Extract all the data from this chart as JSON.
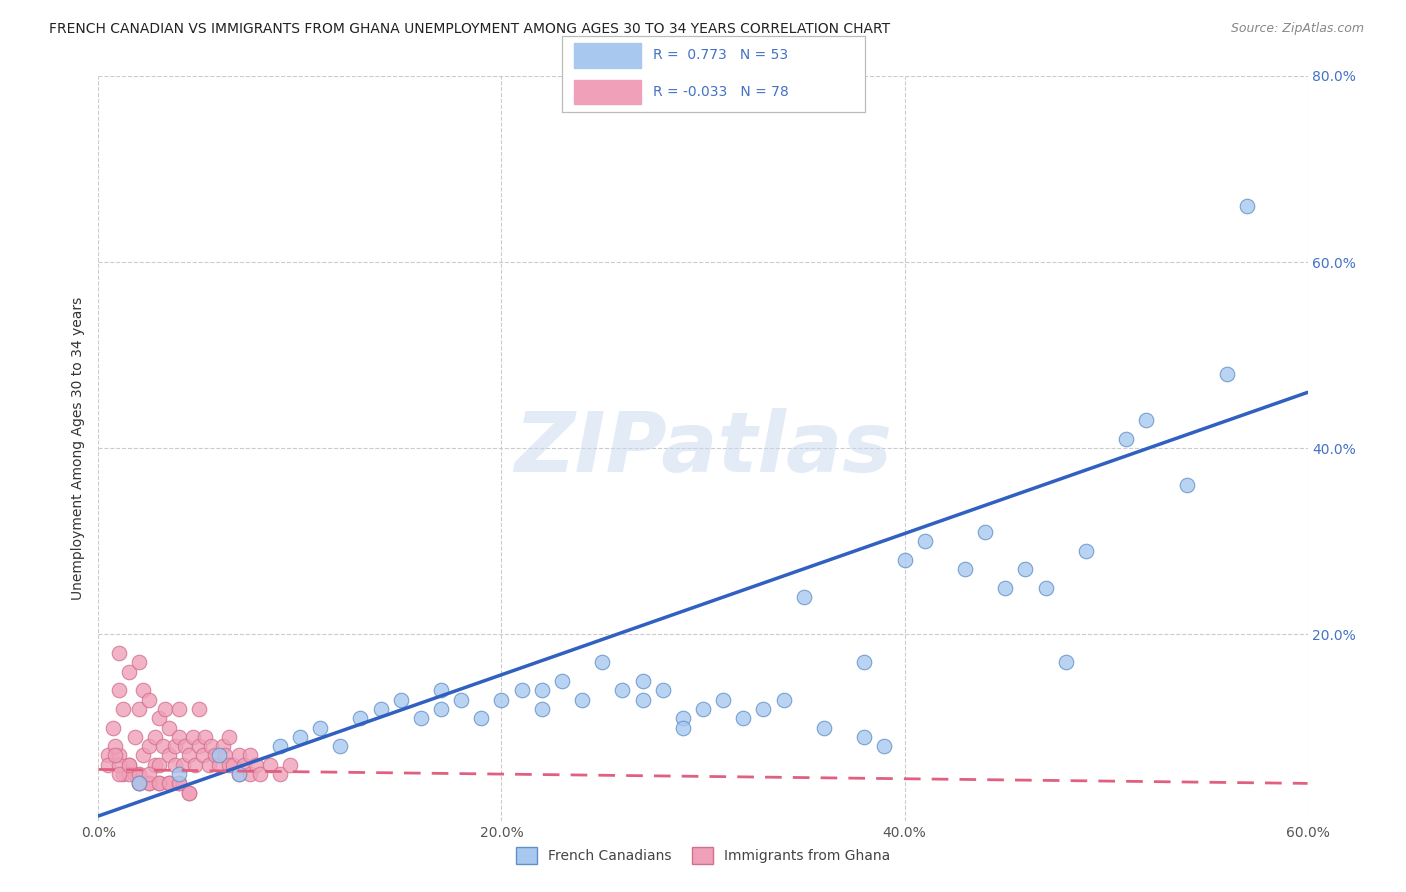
{
  "title": "FRENCH CANADIAN VS IMMIGRANTS FROM GHANA UNEMPLOYMENT AMONG AGES 30 TO 34 YEARS CORRELATION CHART",
  "source": "Source: ZipAtlas.com",
  "ylabel": "Unemployment Among Ages 30 to 34 years",
  "xlim": [
    0.0,
    0.6
  ],
  "ylim": [
    0.0,
    0.8
  ],
  "xtick_labels": [
    "0.0%",
    "20.0%",
    "40.0%",
    "60.0%"
  ],
  "xtick_values": [
    0.0,
    0.2,
    0.4,
    0.6
  ],
  "ytick_labels": [
    "20.0%",
    "40.0%",
    "60.0%",
    "80.0%"
  ],
  "ytick_values": [
    0.2,
    0.4,
    0.6,
    0.8
  ],
  "watermark": "ZIPatlas",
  "legend_label1": "French Canadians",
  "legend_label2": "Immigrants from Ghana",
  "color_blue": "#A8C8F0",
  "color_pink": "#F0A0B8",
  "color_blue_line": "#3060C0",
  "color_pink_line": "#E06080",
  "color_blue_text": "#4472C4",
  "color_grid": "#CCCCCC",
  "blue_scatter_x": [
    0.02,
    0.04,
    0.06,
    0.07,
    0.09,
    0.1,
    0.11,
    0.12,
    0.13,
    0.14,
    0.15,
    0.16,
    0.17,
    0.17,
    0.18,
    0.19,
    0.2,
    0.21,
    0.22,
    0.22,
    0.23,
    0.24,
    0.25,
    0.26,
    0.27,
    0.27,
    0.28,
    0.29,
    0.29,
    0.3,
    0.31,
    0.32,
    0.33,
    0.34,
    0.35,
    0.36,
    0.38,
    0.38,
    0.39,
    0.4,
    0.41,
    0.43,
    0.44,
    0.45,
    0.46,
    0.47,
    0.48,
    0.49,
    0.51,
    0.52,
    0.54,
    0.56,
    0.57
  ],
  "blue_scatter_y": [
    0.04,
    0.05,
    0.07,
    0.05,
    0.08,
    0.09,
    0.1,
    0.08,
    0.11,
    0.12,
    0.13,
    0.11,
    0.12,
    0.14,
    0.13,
    0.11,
    0.13,
    0.14,
    0.12,
    0.14,
    0.15,
    0.13,
    0.17,
    0.14,
    0.13,
    0.15,
    0.14,
    0.11,
    0.1,
    0.12,
    0.13,
    0.11,
    0.12,
    0.13,
    0.24,
    0.1,
    0.17,
    0.09,
    0.08,
    0.28,
    0.3,
    0.27,
    0.31,
    0.25,
    0.27,
    0.25,
    0.17,
    0.29,
    0.41,
    0.43,
    0.36,
    0.48,
    0.66
  ],
  "pink_scatter_x": [
    0.005,
    0.007,
    0.01,
    0.01,
    0.012,
    0.015,
    0.018,
    0.02,
    0.02,
    0.022,
    0.022,
    0.025,
    0.025,
    0.028,
    0.028,
    0.03,
    0.03,
    0.032,
    0.033,
    0.035,
    0.035,
    0.038,
    0.038,
    0.04,
    0.04,
    0.042,
    0.043,
    0.045,
    0.047,
    0.048,
    0.05,
    0.05,
    0.052,
    0.053,
    0.055,
    0.056,
    0.058,
    0.06,
    0.062,
    0.063,
    0.065,
    0.065,
    0.067,
    0.07,
    0.07,
    0.072,
    0.075,
    0.075,
    0.078,
    0.08,
    0.085,
    0.09,
    0.095,
    0.01,
    0.012,
    0.015,
    0.018,
    0.02,
    0.025,
    0.03,
    0.035,
    0.04,
    0.045,
    0.005,
    0.008,
    0.01,
    0.015,
    0.02,
    0.025,
    0.008,
    0.01,
    0.015,
    0.02,
    0.025,
    0.03,
    0.035,
    0.04,
    0.045
  ],
  "pink_scatter_y": [
    0.07,
    0.1,
    0.14,
    0.18,
    0.12,
    0.16,
    0.09,
    0.12,
    0.17,
    0.07,
    0.14,
    0.08,
    0.13,
    0.09,
    0.06,
    0.11,
    0.06,
    0.08,
    0.12,
    0.07,
    0.1,
    0.08,
    0.06,
    0.09,
    0.12,
    0.06,
    0.08,
    0.07,
    0.09,
    0.06,
    0.08,
    0.12,
    0.07,
    0.09,
    0.06,
    0.08,
    0.07,
    0.06,
    0.08,
    0.07,
    0.06,
    0.09,
    0.06,
    0.07,
    0.05,
    0.06,
    0.07,
    0.05,
    0.06,
    0.05,
    0.06,
    0.05,
    0.06,
    0.07,
    0.05,
    0.06,
    0.05,
    0.04,
    0.04,
    0.04,
    0.04,
    0.04,
    0.03,
    0.06,
    0.08,
    0.06,
    0.05,
    0.05,
    0.04,
    0.07,
    0.05,
    0.06,
    0.04,
    0.05,
    0.04,
    0.04,
    0.04,
    0.03
  ],
  "blue_line_x0": 0.0,
  "blue_line_y0": 0.005,
  "blue_line_x1": 0.6,
  "blue_line_y1": 0.46,
  "pink_line_x0": 0.0,
  "pink_line_y0": 0.055,
  "pink_line_x1": 0.6,
  "pink_line_y1": 0.04
}
